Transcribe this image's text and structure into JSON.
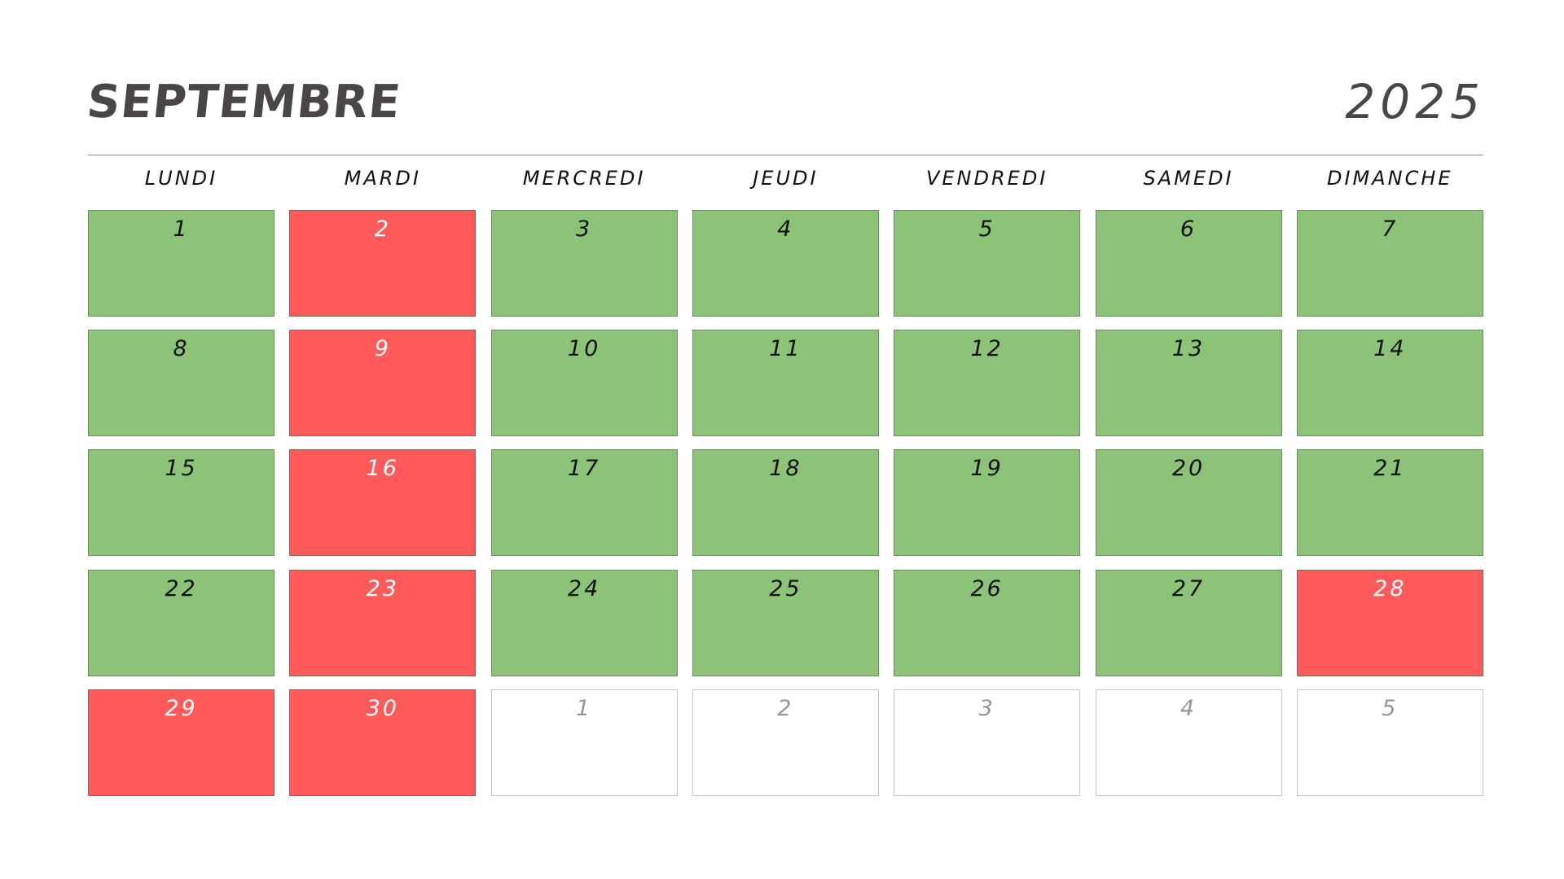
{
  "calendar": {
    "month": "SEPTEMBRE",
    "year": "2025",
    "weekdays": [
      "LUNDI",
      "MARDI",
      "MERCREDI",
      "JEUDI",
      "VENDREDI",
      "SAMEDI",
      "DIMANCHE"
    ],
    "status_colors": {
      "green": "#8dc378",
      "red": "#ff5b5b",
      "empty": "#ffffff"
    },
    "weeks": [
      [
        {
          "day": "1",
          "status": "green"
        },
        {
          "day": "2",
          "status": "red"
        },
        {
          "day": "3",
          "status": "green"
        },
        {
          "day": "4",
          "status": "green"
        },
        {
          "day": "5",
          "status": "green"
        },
        {
          "day": "6",
          "status": "green"
        },
        {
          "day": "7",
          "status": "green"
        }
      ],
      [
        {
          "day": "8",
          "status": "green"
        },
        {
          "day": "9",
          "status": "red"
        },
        {
          "day": "10",
          "status": "green"
        },
        {
          "day": "11",
          "status": "green"
        },
        {
          "day": "12",
          "status": "green"
        },
        {
          "day": "13",
          "status": "green"
        },
        {
          "day": "14",
          "status": "green"
        }
      ],
      [
        {
          "day": "15",
          "status": "green"
        },
        {
          "day": "16",
          "status": "red"
        },
        {
          "day": "17",
          "status": "green"
        },
        {
          "day": "18",
          "status": "green"
        },
        {
          "day": "19",
          "status": "green"
        },
        {
          "day": "20",
          "status": "green"
        },
        {
          "day": "21",
          "status": "green"
        }
      ],
      [
        {
          "day": "22",
          "status": "green"
        },
        {
          "day": "23",
          "status": "red"
        },
        {
          "day": "24",
          "status": "green"
        },
        {
          "day": "25",
          "status": "green"
        },
        {
          "day": "26",
          "status": "green"
        },
        {
          "day": "27",
          "status": "green"
        },
        {
          "day": "28",
          "status": "red"
        }
      ],
      [
        {
          "day": "29",
          "status": "red"
        },
        {
          "day": "30",
          "status": "red"
        },
        {
          "day": "1",
          "status": "empty"
        },
        {
          "day": "2",
          "status": "empty"
        },
        {
          "day": "3",
          "status": "empty"
        },
        {
          "day": "4",
          "status": "empty"
        },
        {
          "day": "5",
          "status": "empty"
        }
      ]
    ]
  }
}
